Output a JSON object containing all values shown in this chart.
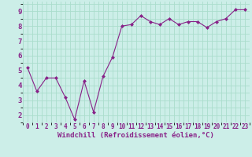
{
  "x": [
    0,
    1,
    2,
    3,
    4,
    5,
    6,
    7,
    8,
    9,
    10,
    11,
    12,
    13,
    14,
    15,
    16,
    17,
    18,
    19,
    20,
    21,
    22,
    23
  ],
  "y": [
    5.2,
    3.6,
    4.5,
    4.5,
    3.2,
    1.7,
    4.3,
    2.2,
    4.6,
    5.9,
    8.0,
    8.1,
    8.7,
    8.3,
    8.1,
    8.5,
    8.1,
    8.3,
    8.3,
    7.9,
    8.3,
    8.5,
    9.1,
    9.1
  ],
  "line_color": "#882288",
  "marker": "D",
  "markersize": 2.0,
  "linewidth": 0.8,
  "xlim": [
    -0.5,
    23.5
  ],
  "ylim": [
    1.5,
    9.65
  ],
  "yticks": [
    2,
    3,
    4,
    5,
    6,
    7,
    8,
    9
  ],
  "xtick_labels": [
    "0",
    "1",
    "2",
    "3",
    "4",
    "5",
    "6",
    "7",
    "8",
    "9",
    "10",
    "11",
    "12",
    "13",
    "14",
    "15",
    "16",
    "17",
    "18",
    "19",
    "20",
    "21",
    "22",
    "23"
  ],
  "xlabel": "Windchill (Refroidissement éolien,°C)",
  "bg_color": "#cceee8",
  "grid_color": "#aaddcc",
  "tick_color": "#882288",
  "label_color": "#882288",
  "xlabel_fontsize": 6.5,
  "ytick_fontsize": 6.5,
  "xtick_fontsize": 5.5
}
